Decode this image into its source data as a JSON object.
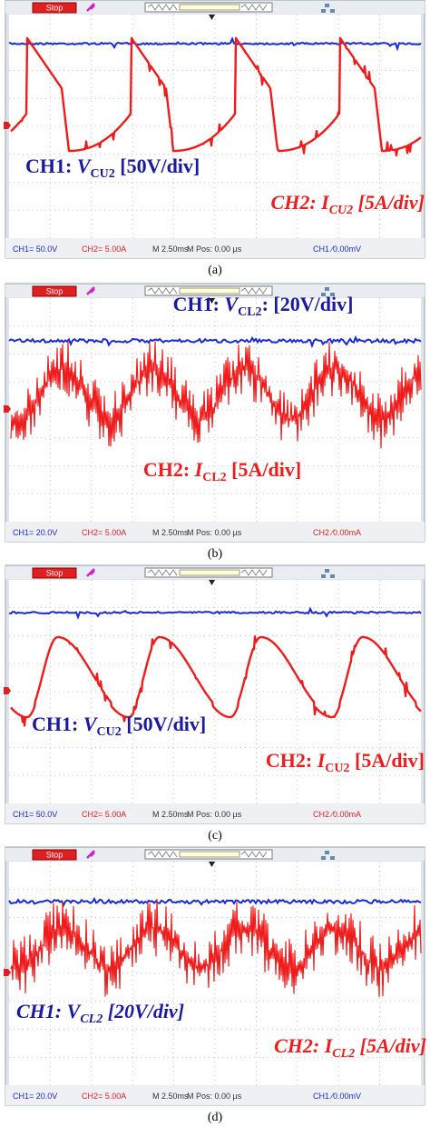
{
  "panels": [
    {
      "run_state": "Stop",
      "ch1_label": {
        "prefix": "CH1: ",
        "symbol": "V",
        "subscript": "CU2",
        "suffix": " [50V/div]"
      },
      "ch2_label": {
        "prefix": "CH2: ",
        "symbol": "I",
        "subscript": "CU2",
        "suffix": " [5A/div]"
      },
      "status": {
        "ch1_scale": "CH1= 50.0V",
        "ch2_scale": "CH2= 5.00A",
        "timebase": "M 2.50ms",
        "position": "M Pos: 0.00 µs",
        "trigger": "CH1 ∕0.00mV"
      },
      "caption": "(a)"
    },
    {
      "run_state": "Stop",
      "ch1_label": {
        "prefix": "CH1: ",
        "symbol": "V",
        "subscript": "CL2",
        "suffix": ": [20V/div]"
      },
      "ch2_label": {
        "prefix": "CH2: ",
        "symbol": "I",
        "subscript": "CL2",
        "suffix": " [5A/div]"
      },
      "status": {
        "ch1_scale": "CH1= 20.0V",
        "ch2_scale": "CH2= 5.00A",
        "timebase": "M 2.50ms",
        "position": "M Pos: 0.00 µs",
        "trigger": "CH2 ∕0.00mA"
      },
      "caption": "(b)"
    },
    {
      "run_state": "Stop",
      "ch1_label": {
        "prefix": "CH1: ",
        "symbol": "V",
        "subscript": "CU2",
        "suffix": " [50V/div]"
      },
      "ch2_label": {
        "prefix": "CH2: ",
        "symbol": "I",
        "subscript": "CU2",
        "suffix": " [5A/div]"
      },
      "status": {
        "ch1_scale": "CH1= 50.0V",
        "ch2_scale": "CH2= 5.00A",
        "timebase": "M 2.50ms",
        "position": "M Pos: 0.00 µs",
        "trigger": "CH2 ∕0.00mA"
      },
      "caption": "(c)"
    },
    {
      "run_state": "Stop",
      "ch1_label": {
        "prefix": "CH1: ",
        "symbol": "V",
        "subscript": "CL2",
        "suffix": " [20V/div]"
      },
      "ch2_label": {
        "prefix": "CH2: ",
        "symbol": "I",
        "subscript": "CL2",
        "suffix": " [5A/div]"
      },
      "status": {
        "ch1_scale": "CH1= 20.0V",
        "ch2_scale": "CH2= 5.00A",
        "timebase": "M 2.50ms",
        "position": "M Pos: 0.00 µs",
        "trigger": "CH1 ∕0.00mV"
      },
      "caption": "(d)"
    }
  ]
}
